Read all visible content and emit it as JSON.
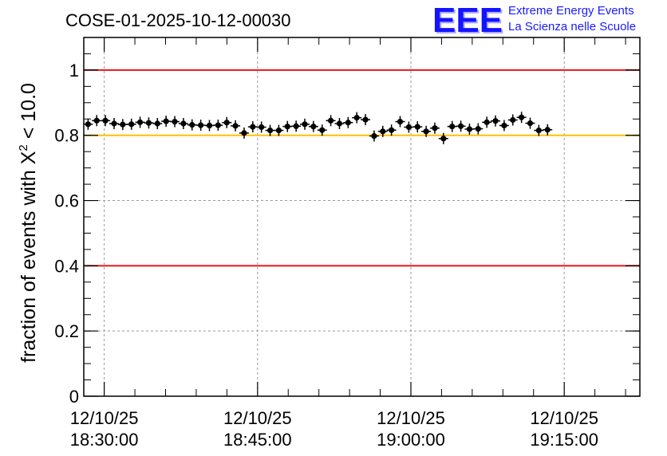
{
  "chart_data": {
    "type": "scatter",
    "title": "COSE-01-2025-10-12-00030",
    "ylabel_prefix": "fraction of events with ",
    "ylabel_symbol": "X",
    "ylabel_superscript": "2",
    "ylabel_suffix": " < 10.0",
    "ylim": [
      0,
      1.1
    ],
    "y_ticks": [
      "0",
      "0.2",
      "0.4",
      "0.6",
      "0.8",
      "1"
    ],
    "y_tick_values": [
      0,
      0.2,
      0.4,
      0.6,
      0.8,
      1.0
    ],
    "x_ticks": [
      {
        "minute": 0,
        "date": "12/10/25",
        "time": "18:30:00"
      },
      {
        "minute": 15,
        "date": "12/10/25",
        "time": "18:45:00"
      },
      {
        "minute": 30,
        "date": "12/10/25",
        "time": "19:00:00"
      },
      {
        "minute": 45,
        "date": "12/10/25",
        "time": "19:15:00"
      }
    ],
    "x_range_minutes": [
      -2,
      52.4
    ],
    "x_step_minutes": 0.848,
    "x_start_minute": -1.58,
    "values": [
      0.834,
      0.845,
      0.845,
      0.836,
      0.833,
      0.834,
      0.84,
      0.838,
      0.836,
      0.843,
      0.842,
      0.836,
      0.832,
      0.831,
      0.83,
      0.831,
      0.839,
      0.829,
      0.807,
      0.826,
      0.825,
      0.815,
      0.815,
      0.827,
      0.828,
      0.834,
      0.827,
      0.816,
      0.845,
      0.836,
      0.839,
      0.854,
      0.848,
      0.798,
      0.812,
      0.816,
      0.842,
      0.825,
      0.826,
      0.812,
      0.822,
      0.79,
      0.827,
      0.828,
      0.819,
      0.82,
      0.84,
      0.844,
      0.83,
      0.847,
      0.855,
      0.837,
      0.815,
      0.817
    ],
    "reference_lines": [
      {
        "value": 1.0,
        "color": "#e8141c"
      },
      {
        "value": 0.8,
        "color": "#ffc000"
      },
      {
        "value": 0.4,
        "color": "#e8141c"
      }
    ],
    "grid": true,
    "marker_color": "#000000"
  },
  "logo": {
    "letters": "EEE",
    "line1": "Extreme Energy Events",
    "line2": "La Scienza nelle Scuole",
    "color": "#1414ff"
  }
}
